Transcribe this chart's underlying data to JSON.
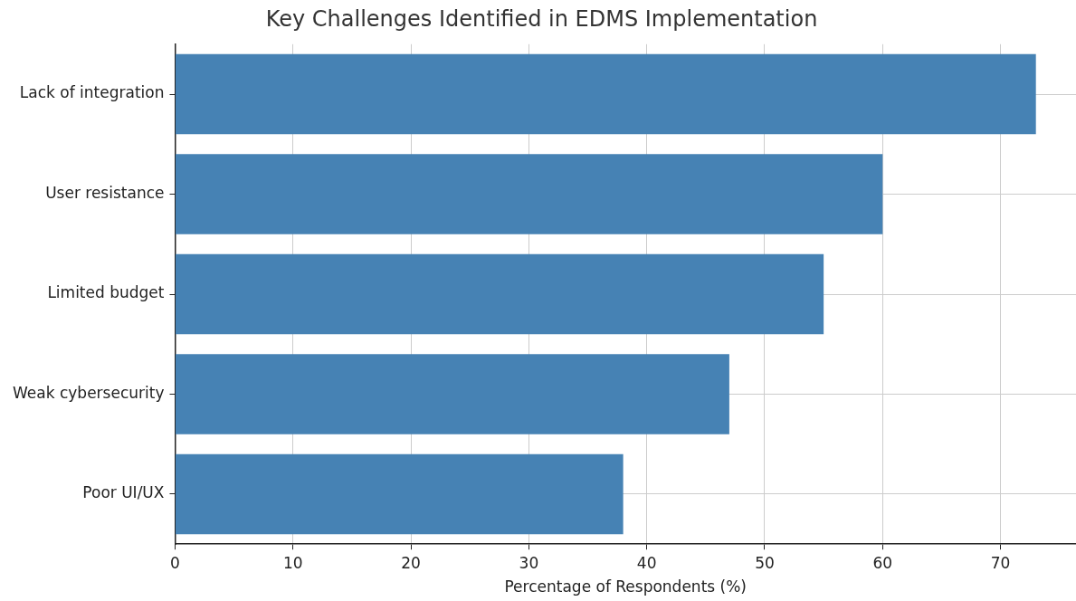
{
  "chart_data": {
    "type": "bar",
    "orientation": "horizontal",
    "title": "Key Challenges Identified in EDMS Implementation",
    "xlabel": "Percentage of Respondents (%)",
    "categories": [
      "Lack of integration",
      "User resistance",
      "Limited budget",
      "Weak cybersecurity",
      "Poor UI/UX"
    ],
    "values": [
      73,
      60,
      55,
      47,
      38
    ],
    "color": "#4682b4",
    "xlim": [
      0,
      76.4
    ],
    "xticks": [
      0,
      10,
      20,
      30,
      40,
      50,
      60,
      70
    ],
    "grid": true,
    "legend": false
  }
}
